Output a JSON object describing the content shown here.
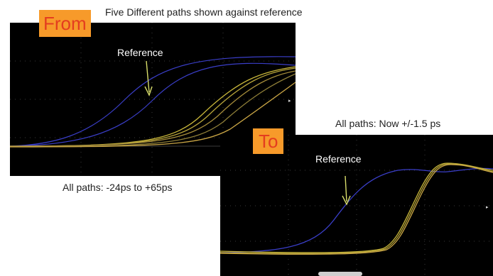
{
  "title": "Five Different paths shown against reference",
  "before": {
    "badge": "From",
    "annotation": "Reference",
    "caption": "All paths: -24ps to +65ps"
  },
  "after": {
    "badge": "To",
    "annotation": "Reference",
    "caption": "All paths: Now +/-1.5 ps"
  },
  "colors": {
    "badge_bg": "#f79a2a",
    "badge_text": "#e43d1f",
    "reference_trace": "#3a3ec8",
    "path_traces": [
      "#c9b73a",
      "#b8a53a",
      "#a58c3a",
      "#8f7f38",
      "#caa645"
    ],
    "arrow": "#d8dd6a"
  }
}
